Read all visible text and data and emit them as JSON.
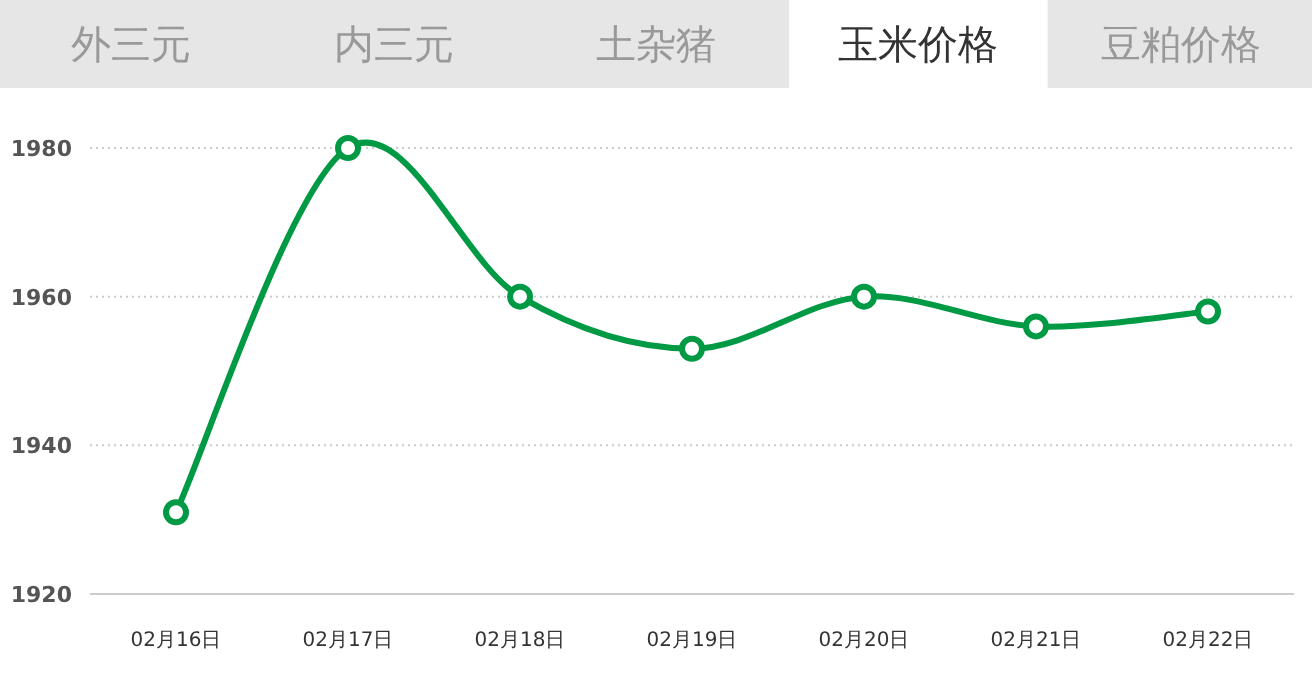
{
  "chart_data": {
    "type": "line",
    "annotations": [
      "外三元",
      "内三元",
      "土杂猪",
      "玉米价格",
      "豆粕价格"
    ],
    "categories": [
      "02月16日",
      "02月17日",
      "02月18日",
      "02月19日",
      "02月20日",
      "02月21日",
      "02月22日"
    ],
    "series": [
      {
        "color": "#009944",
        "values": [
          1931,
          1980,
          1960,
          1953,
          1960,
          1956,
          1958
        ]
      }
    ],
    "ylim": [
      1920,
      1980
    ],
    "yticks": [
      1920,
      1940,
      1960,
      1980
    ],
    "grid": "y",
    "marker": "circle"
  }
}
